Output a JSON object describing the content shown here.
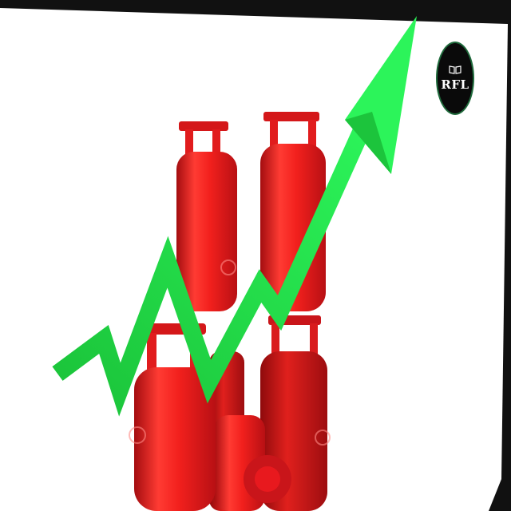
{
  "logo": {
    "text": "RFL",
    "icon": "book-icon",
    "ring_color": "#1f6b3c"
  },
  "scene": {
    "subject": "gas-cylinders",
    "arrow_color": "#22e04a",
    "cylinder_color": "#e8191e",
    "background": "#ffffff",
    "frame_color": "#111111"
  }
}
